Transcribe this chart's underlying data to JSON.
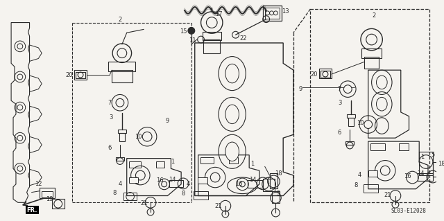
{
  "bg_color": "#f5f3ef",
  "line_color": "#2a2a2a",
  "diagram_code": "SL03-E12028",
  "figwidth": 6.4,
  "figheight": 3.19,
  "dpi": 100
}
